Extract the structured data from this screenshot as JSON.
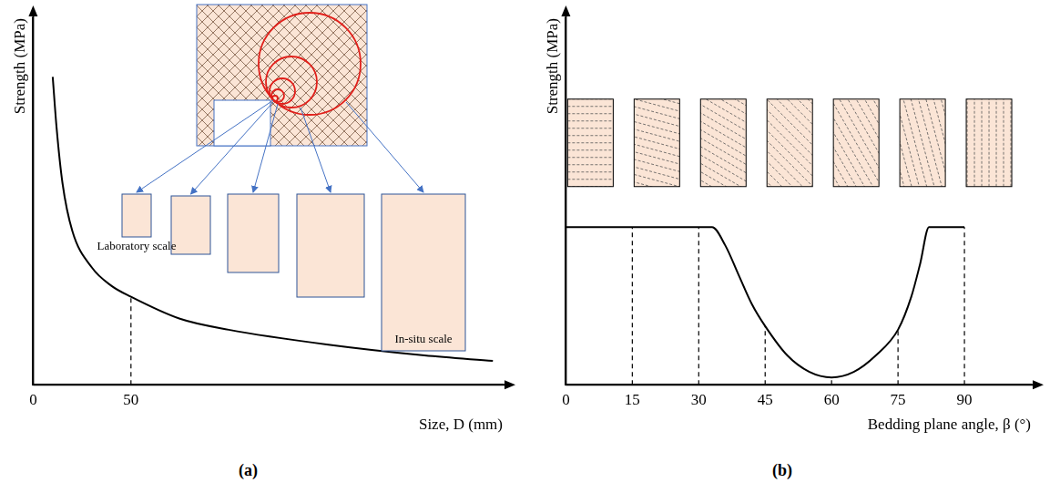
{
  "chart_data": [
    {
      "type": "line",
      "panel_label": "(a)",
      "x_label": "Size, D (mm)",
      "y_label": "Strength (MPa)",
      "x": [
        10,
        12,
        15,
        20,
        30,
        40,
        50,
        75,
        100,
        150,
        200,
        235
      ],
      "values": [
        84,
        70,
        55,
        42,
        32,
        27,
        24,
        18,
        15,
        11,
        8,
        6.5
      ],
      "xlim": [
        0,
        240
      ],
      "xticks": [
        0,
        50
      ],
      "ylim": [
        0,
        100
      ],
      "tick_labels": "x",
      "grid": false,
      "color": "#000000",
      "reference_lines_x": [
        50
      ],
      "annotations": [
        "Laboratory scale",
        "In-situ scale"
      ]
    },
    {
      "type": "line",
      "panel_label": "(b)",
      "x_label": "Bedding plane angle, β (°)",
      "y_label": "Strength (MPa)",
      "x": [
        0,
        15,
        30,
        33,
        36,
        39,
        42,
        45,
        50,
        55,
        60,
        65,
        70,
        75,
        78,
        80,
        82,
        90
      ],
      "values": [
        43,
        43,
        43,
        43,
        38,
        30,
        22,
        16,
        8,
        3.5,
        2,
        3.5,
        8,
        15,
        24,
        33,
        43,
        43
      ],
      "xlim": [
        0,
        105
      ],
      "xticks": [
        0,
        15,
        30,
        45,
        60,
        75,
        90
      ],
      "ylim": [
        0,
        100
      ],
      "tick_labels": "x",
      "grid": false,
      "color": "#000000",
      "reference_lines_x": [
        15,
        30,
        45,
        60,
        75,
        90
      ]
    }
  ]
}
